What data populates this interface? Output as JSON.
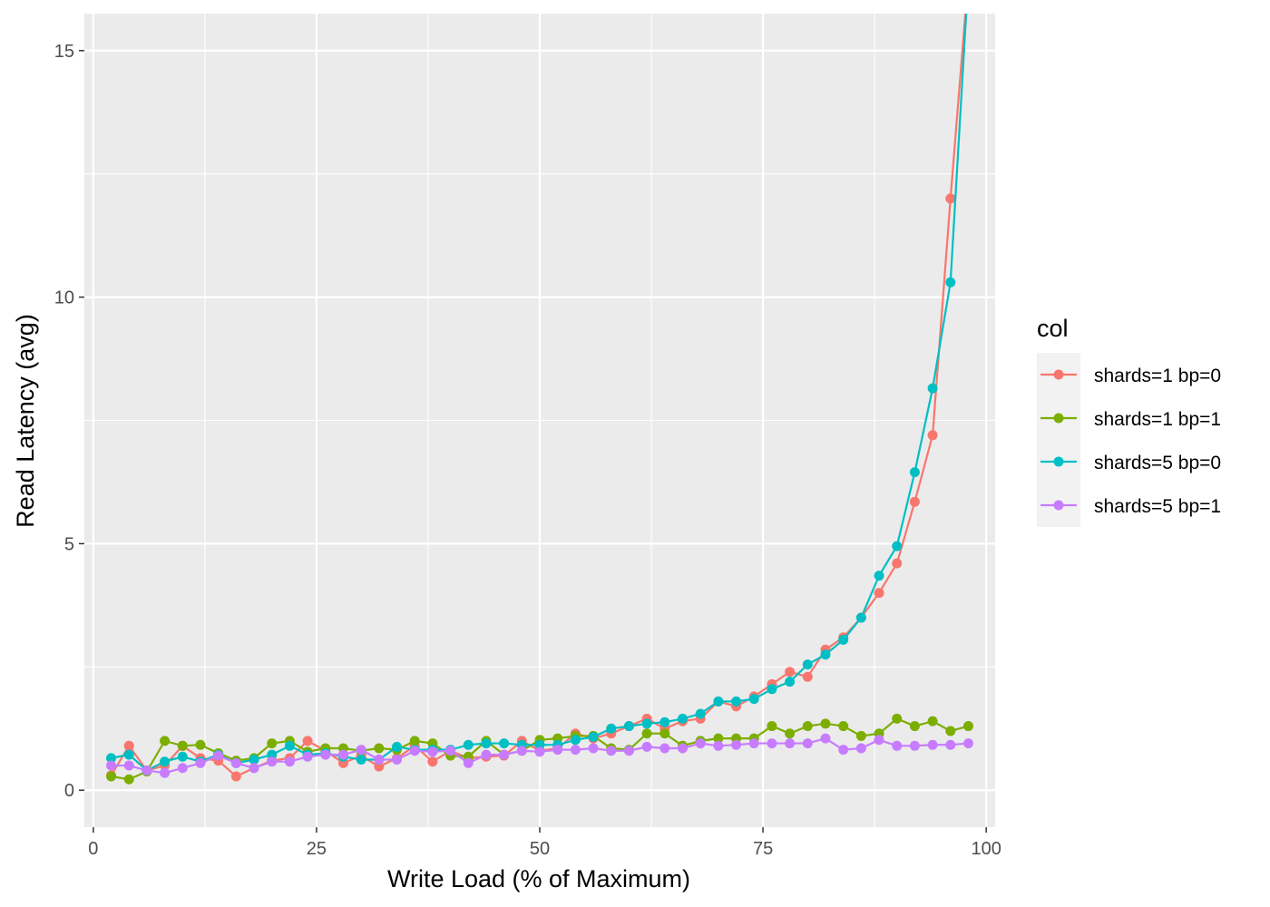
{
  "chart_data": {
    "type": "line",
    "title": "",
    "xlabel": "Write Load (% of Maximum)",
    "ylabel": "Read Latency (avg)",
    "xlim": [
      -1,
      101
    ],
    "ylim": [
      -0.75,
      15.75
    ],
    "x_ticks": [
      0,
      25,
      50,
      75,
      100
    ],
    "y_ticks": [
      0,
      5,
      10,
      15
    ],
    "x_tick_labels": [
      "0",
      "25",
      "50",
      "75",
      "100"
    ],
    "y_tick_labels": [
      "0",
      "5",
      "10",
      "15"
    ],
    "grid": true,
    "legend_title": "col",
    "legend_position": "right",
    "x": [
      2,
      4,
      6,
      8,
      10,
      12,
      14,
      16,
      18,
      20,
      22,
      24,
      26,
      28,
      30,
      32,
      34,
      36,
      38,
      40,
      42,
      44,
      46,
      48,
      50,
      52,
      54,
      56,
      58,
      60,
      62,
      64,
      66,
      68,
      70,
      72,
      74,
      76,
      78,
      80,
      82,
      84,
      86,
      88,
      90,
      92,
      94,
      96,
      98
    ],
    "series": [
      {
        "name": "shards=1 bp=0",
        "color": "#F8766D",
        "values": [
          0.3,
          0.9,
          0.4,
          0.5,
          0.9,
          0.65,
          0.6,
          0.28,
          0.45,
          0.6,
          0.65,
          1.0,
          0.8,
          0.55,
          0.7,
          0.48,
          0.65,
          0.9,
          0.58,
          0.8,
          0.65,
          0.68,
          0.7,
          1.0,
          0.8,
          0.85,
          1.15,
          1.05,
          1.15,
          1.3,
          1.45,
          1.25,
          1.4,
          1.45,
          1.8,
          1.7,
          1.9,
          2.15,
          2.4,
          2.3,
          2.85,
          3.1,
          3.5,
          4.0,
          4.6,
          5.85,
          7.2,
          12.0,
          16.5
        ]
      },
      {
        "name": "shards=1 bp=1",
        "color": "#7CAE00",
        "values": [
          0.28,
          0.22,
          0.38,
          1.0,
          0.9,
          0.92,
          0.75,
          0.6,
          0.65,
          0.95,
          1.0,
          0.78,
          0.85,
          0.85,
          0.8,
          0.85,
          0.82,
          1.0,
          0.95,
          0.7,
          0.68,
          1.0,
          0.72,
          0.8,
          1.02,
          1.05,
          1.1,
          1.1,
          0.85,
          0.82,
          1.15,
          1.15,
          0.9,
          1.0,
          1.05,
          1.05,
          1.05,
          1.3,
          1.15,
          1.3,
          1.35,
          1.3,
          1.1,
          1.15,
          1.45,
          1.3,
          1.4,
          1.2,
          1.3
        ]
      },
      {
        "name": "shards=5 bp=0",
        "color": "#00BFC4",
        "values": [
          0.65,
          0.72,
          0.4,
          0.58,
          0.68,
          0.58,
          0.72,
          0.55,
          0.62,
          0.72,
          0.9,
          0.72,
          0.75,
          0.68,
          0.62,
          0.62,
          0.88,
          0.82,
          0.82,
          0.82,
          0.92,
          0.95,
          0.95,
          0.92,
          0.92,
          0.92,
          1.02,
          1.08,
          1.25,
          1.3,
          1.35,
          1.38,
          1.45,
          1.55,
          1.8,
          1.8,
          1.85,
          2.05,
          2.2,
          2.55,
          2.75,
          3.05,
          3.5,
          4.35,
          4.95,
          6.45,
          8.15,
          10.3,
          16.5
        ]
      },
      {
        "name": "shards=5 bp=1",
        "color": "#C77CFF",
        "values": [
          0.5,
          0.5,
          0.4,
          0.35,
          0.45,
          0.55,
          0.7,
          0.55,
          0.45,
          0.58,
          0.58,
          0.68,
          0.72,
          0.72,
          0.82,
          0.62,
          0.62,
          0.8,
          0.78,
          0.8,
          0.55,
          0.72,
          0.72,
          0.8,
          0.78,
          0.82,
          0.82,
          0.85,
          0.8,
          0.8,
          0.88,
          0.85,
          0.85,
          0.95,
          0.9,
          0.92,
          0.95,
          0.95,
          0.95,
          0.95,
          1.05,
          0.82,
          0.85,
          1.02,
          0.9,
          0.9,
          0.92,
          0.92,
          0.95
        ]
      }
    ]
  }
}
